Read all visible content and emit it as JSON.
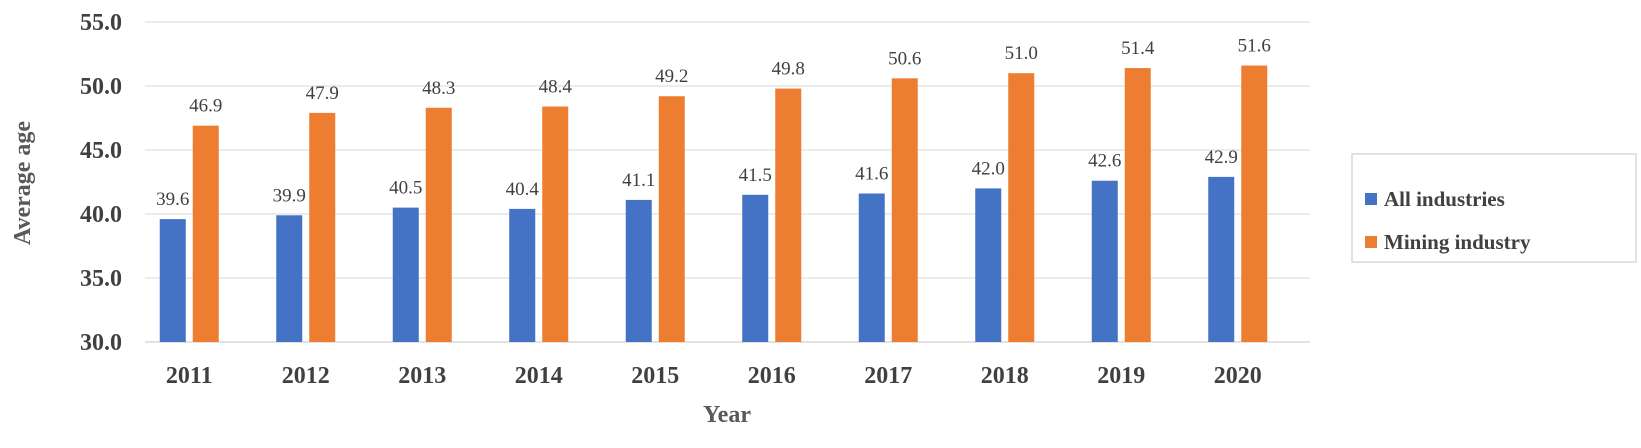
{
  "chart_data": {
    "type": "bar",
    "xlabel": "Year",
    "ylabel": "Average age",
    "ylim": [
      30.0,
      55.0
    ],
    "yticks": [
      "30.0",
      "35.0",
      "40.0",
      "45.0",
      "50.0",
      "55.0"
    ],
    "grid": true,
    "legend_position": "right",
    "categories": [
      "2011",
      "2012",
      "2013",
      "2014",
      "2015",
      "2016",
      "2017",
      "2018",
      "2019",
      "2020"
    ],
    "series": [
      {
        "name": "All industries",
        "color": "#4472C4",
        "values": [
          39.6,
          39.9,
          40.5,
          40.4,
          41.1,
          41.5,
          41.6,
          42.0,
          42.6,
          42.9
        ],
        "labels": [
          "39.6",
          "39.9",
          "40.5",
          "40.4",
          "41.1",
          "41.5",
          "41.6",
          "42.0",
          "42.6",
          "42.9"
        ]
      },
      {
        "name": "Mining industry",
        "color": "#ED7D31",
        "values": [
          46.9,
          47.9,
          48.3,
          48.4,
          49.2,
          49.8,
          50.6,
          51.0,
          51.4,
          51.6
        ],
        "labels": [
          "46.9",
          "47.9",
          "48.3",
          "48.4",
          "49.2",
          "49.8",
          "50.6",
          "51.0",
          "51.4",
          "51.6"
        ]
      }
    ]
  }
}
